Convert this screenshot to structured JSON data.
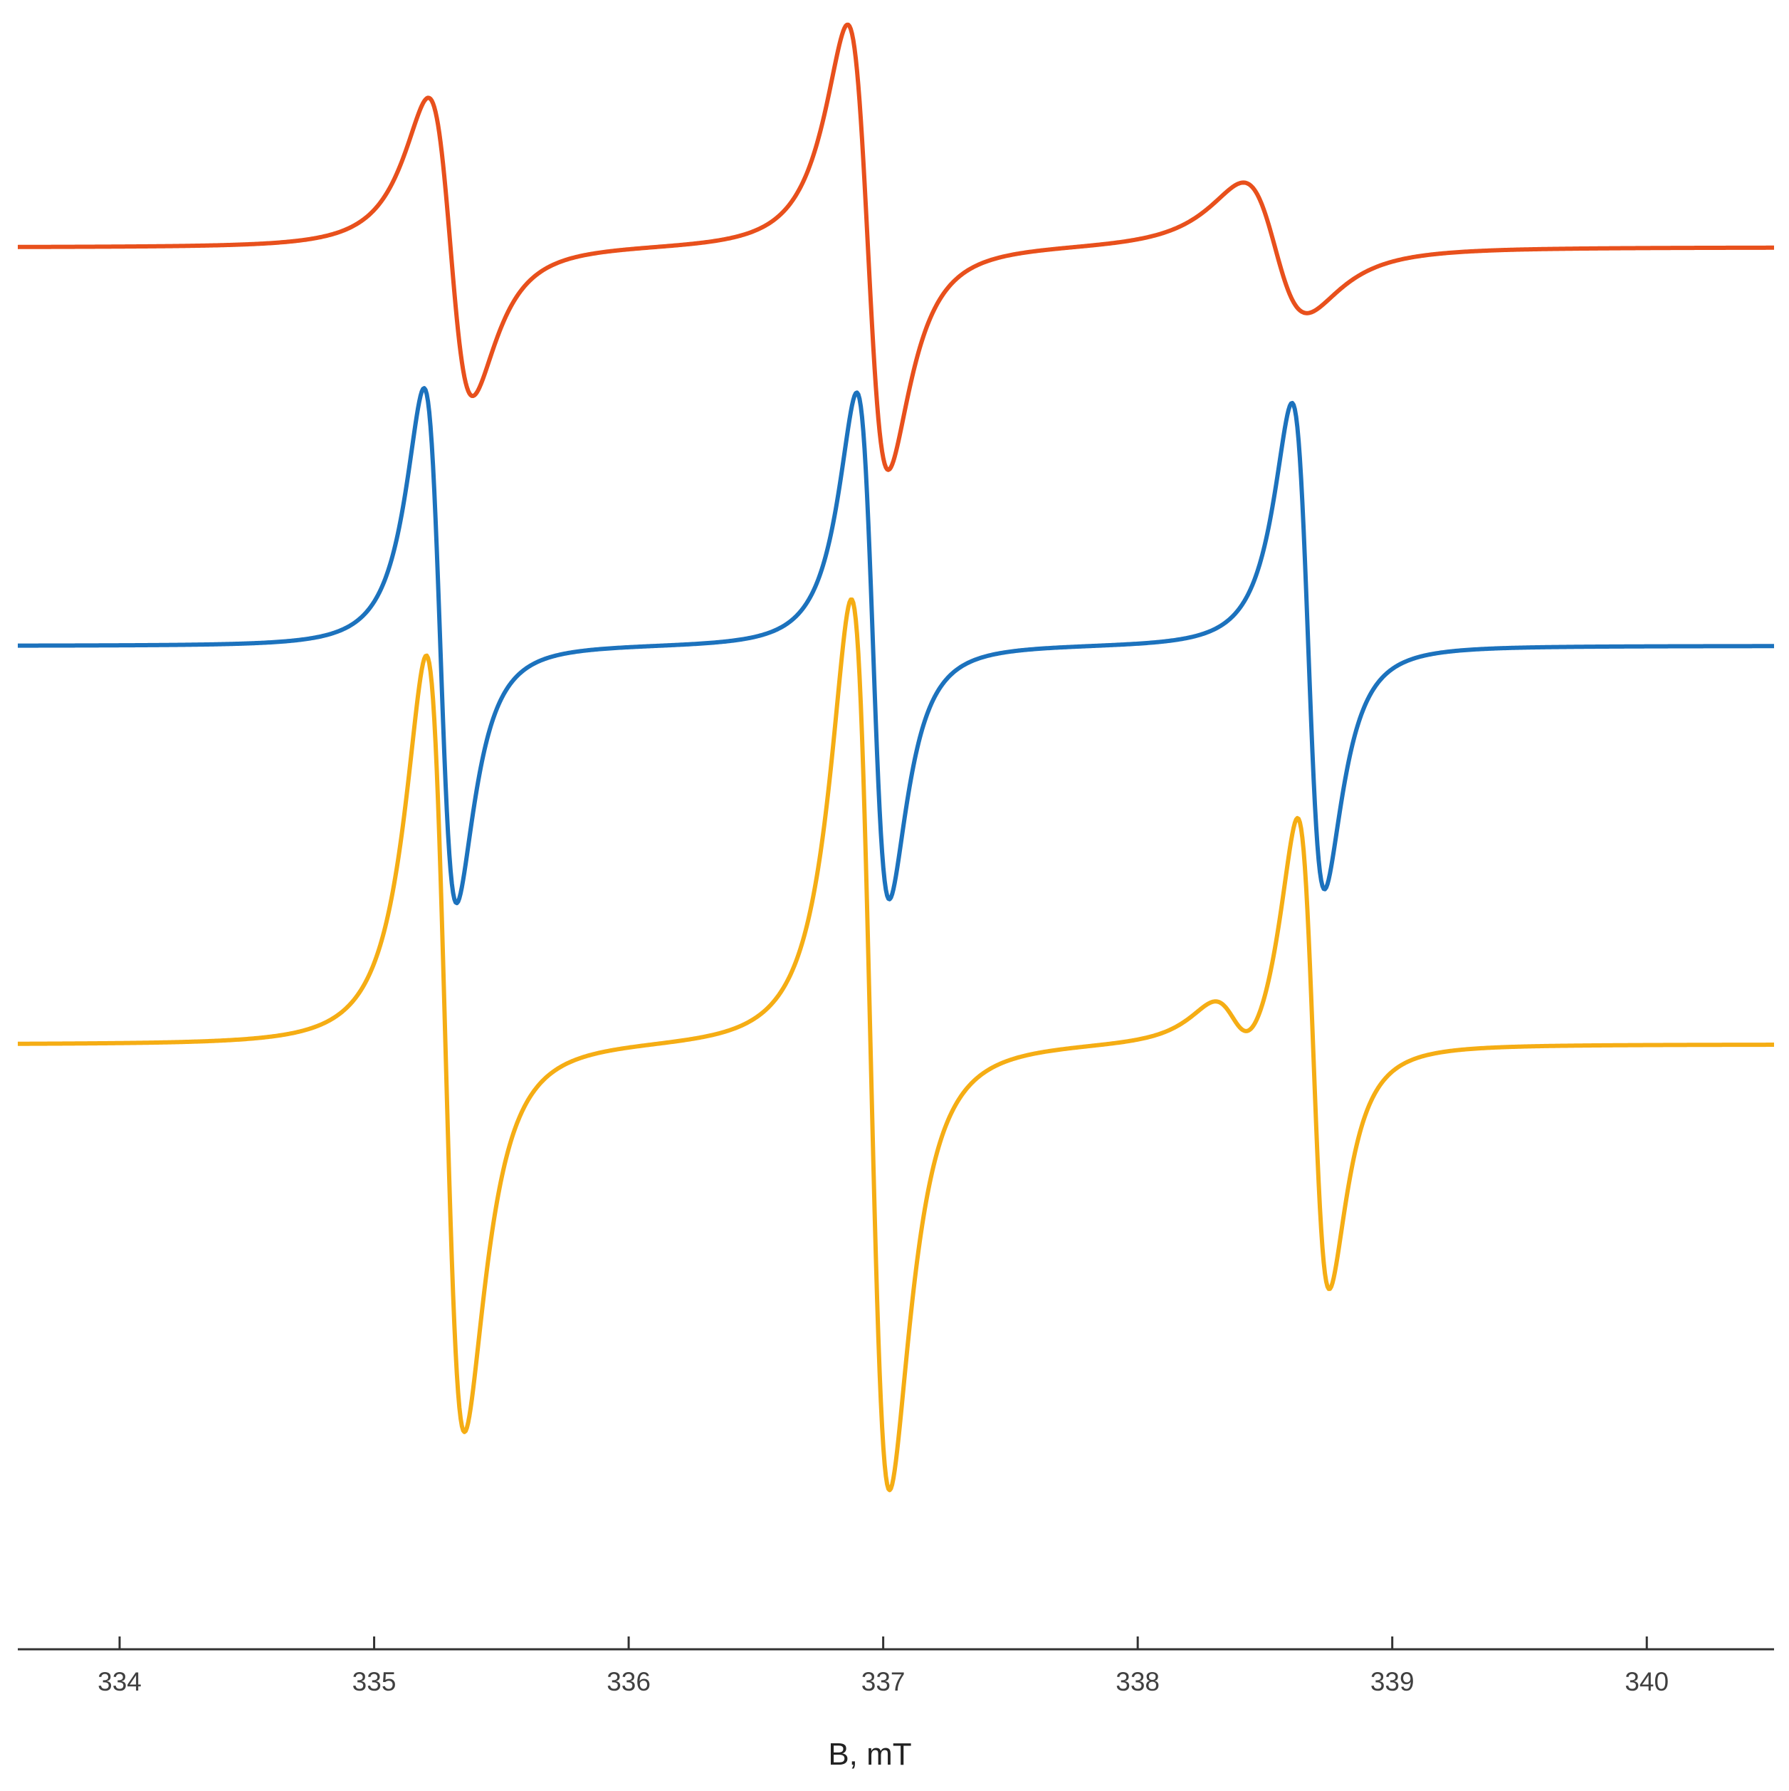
{
  "chart_data": {
    "type": "line",
    "title": "",
    "xlabel": "B, mT",
    "ylabel": "",
    "xlim": [
      333.6,
      340.5
    ],
    "xticks": [
      334,
      335,
      336,
      337,
      338,
      339,
      340
    ],
    "tick_labels": [
      "334",
      "335",
      "336",
      "337",
      "338",
      "339",
      "340"
    ],
    "grid": false,
    "legend": "none",
    "y_axis_shown": false,
    "series": [
      {
        "color": "#e8501c",
        "offset": 1.95,
        "lines": [
          {
            "center": 335.3,
            "amplitude": 0.73,
            "width": 0.087
          },
          {
            "center": 336.94,
            "amplitude": 1.09,
            "width": 0.08
          },
          {
            "center": 338.54,
            "amplitude": 0.32,
            "width": 0.125
          }
        ]
      },
      {
        "color": "#1c72bd",
        "offset": 0.0,
        "lines": [
          {
            "center": 335.26,
            "amplitude": 1.26,
            "width": 0.064
          },
          {
            "center": 336.96,
            "amplitude": 1.24,
            "width": 0.064
          },
          {
            "center": 338.67,
            "amplitude": 1.19,
            "width": 0.064
          }
        ]
      },
      {
        "color": "#f5ad14",
        "offset": -1.95,
        "lines": [
          {
            "center": 335.28,
            "amplitude": 1.9,
            "width": 0.075
          },
          {
            "center": 336.95,
            "amplitude": 2.18,
            "width": 0.075
          },
          {
            "center": 338.69,
            "amplitude": 1.17,
            "width": 0.063
          },
          {
            "center": 338.38,
            "amplitude": 0.15,
            "width": 0.09
          }
        ]
      }
    ]
  }
}
